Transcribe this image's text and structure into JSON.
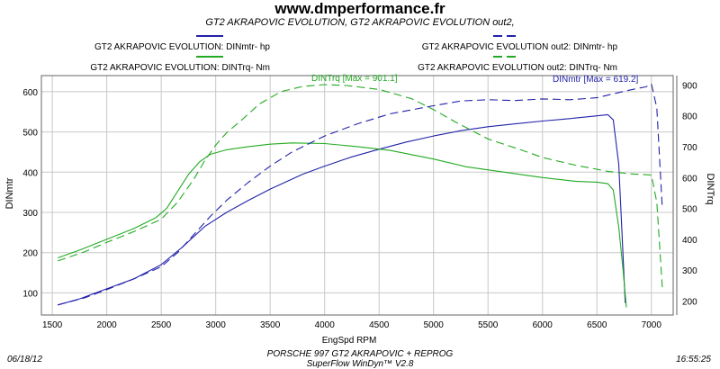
{
  "header": {
    "site": "www.dmperformance.fr",
    "subtitle": "GT2 AKRAPOVIC EVOLUTION, GT2 AKRAPOVIC EVOLUTION out2,"
  },
  "legend": [
    {
      "label": "GT2 AKRAPOVIC EVOLUTION: DINmtr-  hp",
      "color": "#2222aa",
      "dash": false
    },
    {
      "label": "GT2 AKRAPOVIC EVOLUTION: DINTrq-  Nm",
      "color": "#22aa22",
      "dash": false
    },
    {
      "label": "GT2 AKRAPOVIC EVOLUTION out2: DINmtr-  hp",
      "color": "#2222aa",
      "dash": true
    },
    {
      "label": "GT2 AKRAPOVIC EVOLUTION out2: DINTrq-  Nm",
      "color": "#22aa22",
      "dash": true
    }
  ],
  "annotations": {
    "trq_max": "DINTrq [Max = 901.1]",
    "pwr_max": "DINmtr [Max = 619.2]"
  },
  "footer": {
    "date": "06/18/12",
    "time": "16:55:25",
    "line1": "PORSCHE 997 GT2 AKRAPOVIC + REPROG",
    "line2": "SuperFlow WinDyn™ V2.8"
  },
  "colors": {
    "power": "#2222aa",
    "torque": "#22aa22",
    "grid": "#c8c8c8"
  },
  "chart_data": {
    "type": "line",
    "xlabel": "EngSpd  RPM",
    "ylabel_left": "DINmtr",
    "ylabel_right": "DINTrq",
    "x_ticks": [
      1500,
      2000,
      2500,
      3000,
      3500,
      4000,
      4500,
      5000,
      5500,
      6000,
      6500,
      7000
    ],
    "y_left_ticks": [
      100,
      200,
      300,
      400,
      500,
      600
    ],
    "y_right_ticks": [
      200,
      300,
      400,
      500,
      600,
      700,
      800,
      900
    ],
    "xlim": [
      1400,
      7200
    ],
    "ylim_left": [
      45,
      640
    ],
    "ylim_right": [
      155,
      930
    ],
    "grid": true,
    "series": [
      {
        "name": "GT2 AKRAPOVIC EVOLUTION: DINmtr-  hp",
        "axis": "left",
        "dash": false,
        "color": "#2222aa",
        "x": [
          1550,
          1750,
          2000,
          2250,
          2500,
          2700,
          2900,
          3100,
          3300,
          3500,
          3800,
          4000,
          4250,
          4500,
          4750,
          5000,
          5250,
          5500,
          5750,
          6000,
          6250,
          6500,
          6600,
          6650,
          6700,
          6730,
          6760
        ],
        "y": [
          70,
          85,
          110,
          135,
          170,
          215,
          265,
          300,
          330,
          358,
          395,
          415,
          438,
          457,
          475,
          490,
          503,
          513,
          520,
          527,
          533,
          540,
          543,
          530,
          420,
          250,
          75
        ]
      },
      {
        "name": "GT2 AKRAPOVIC EVOLUTION: DINTrq-  Nm",
        "axis": "right",
        "dash": false,
        "color": "#22aa22",
        "x": [
          1550,
          1750,
          2000,
          2250,
          2450,
          2550,
          2650,
          2750,
          2850,
          2950,
          3100,
          3300,
          3500,
          3700,
          4000,
          4300,
          4600,
          5000,
          5300,
          5600,
          6000,
          6300,
          6500,
          6600,
          6650,
          6700,
          6740,
          6770
        ],
        "y": [
          340,
          365,
          400,
          435,
          470,
          500,
          555,
          610,
          650,
          675,
          690,
          700,
          708,
          712,
          710,
          700,
          688,
          660,
          635,
          620,
          600,
          588,
          585,
          580,
          560,
          440,
          300,
          180
        ]
      },
      {
        "name": "GT2 AKRAPOVIC EVOLUTION out2: DINmtr-  hp",
        "axis": "left",
        "dash": true,
        "color": "#2222aa",
        "x": [
          1550,
          1800,
          2000,
          2250,
          2500,
          2650,
          2800,
          2950,
          3100,
          3300,
          3500,
          3700,
          4000,
          4300,
          4600,
          5000,
          5250,
          5500,
          5750,
          6000,
          6250,
          6500,
          6700,
          6850,
          6950,
          7000,
          7050,
          7100
        ],
        "y": [
          70,
          88,
          108,
          135,
          165,
          200,
          245,
          290,
          330,
          375,
          415,
          450,
          490,
          520,
          545,
          565,
          577,
          580,
          578,
          582,
          580,
          585,
          598,
          607,
          612,
          619,
          560,
          310
        ]
      },
      {
        "name": "GT2 AKRAPOVIC EVOLUTION out2: DINTrq-  Nm",
        "axis": "right",
        "dash": true,
        "color": "#22aa22",
        "x": [
          1550,
          1800,
          2000,
          2250,
          2500,
          2650,
          2800,
          2900,
          3000,
          3100,
          3250,
          3400,
          3600,
          3800,
          4000,
          4200,
          4500,
          4800,
          5000,
          5200,
          5500,
          5800,
          6000,
          6300,
          6600,
          6800,
          7000,
          7050,
          7100
        ],
        "y": [
          330,
          360,
          390,
          425,
          465,
          520,
          595,
          655,
          705,
          745,
          790,
          838,
          878,
          895,
          901,
          898,
          885,
          855,
          820,
          780,
          725,
          690,
          665,
          640,
          620,
          612,
          608,
          520,
          245
        ]
      }
    ]
  }
}
